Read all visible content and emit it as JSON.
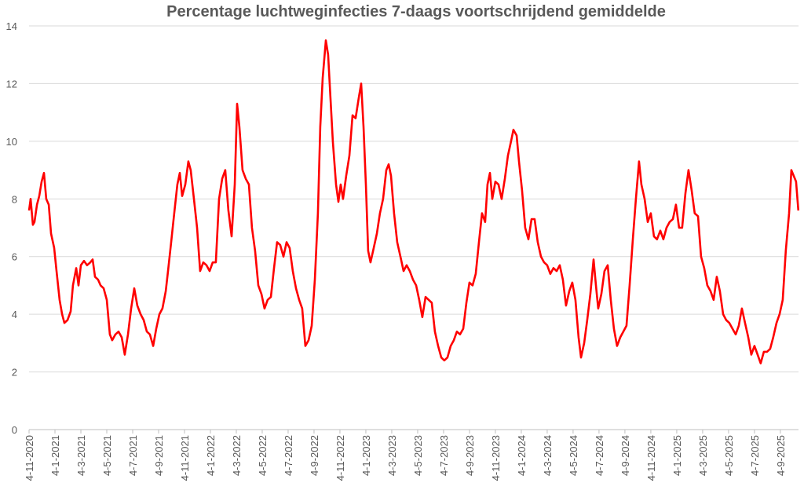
{
  "chart_data": {
    "type": "line",
    "title": "Percentage luchtweginfecties 7-daags voortschrijdend gemiddelde",
    "xlabel": "",
    "ylabel": "",
    "x_units": "months since 4-11-2020",
    "xlim": [
      0,
      59.4
    ],
    "ylim": [
      0,
      14
    ],
    "y_ticks": [
      0,
      2,
      4,
      6,
      8,
      10,
      12,
      14
    ],
    "x_ticks": [
      0,
      2,
      4,
      6,
      8,
      10,
      12,
      14,
      16,
      18,
      20,
      22,
      24,
      26,
      28,
      30,
      32,
      34,
      36,
      38,
      40,
      42,
      44,
      46,
      48,
      50,
      52,
      54,
      56,
      58
    ],
    "x_tick_labels": [
      "4-11-2020",
      "4-1-2021",
      "4-3-2021",
      "4-5-2021",
      "4-7-2021",
      "4-9-2021",
      "4-11-2021",
      "4-1-2022",
      "4-3-2022",
      "4-5-2022",
      "4-7-2022",
      "4-9-2022",
      "4-11-2022",
      "4-1-2023",
      "4-3-2023",
      "4-5-2023",
      "4-7-2023",
      "4-9-2023",
      "4-11-2023",
      "4-1-2024",
      "4-3-2024",
      "4-5-2024",
      "4-7-2024",
      "4-9-2024",
      "4-11-2024",
      "4-1-2025",
      "4-3-2025",
      "4-5-2025",
      "4-7-2025",
      "4-9-2025"
    ],
    "grid": true,
    "legend": "none",
    "series": [
      {
        "name": "Percentage luchtweginfecties",
        "color": "#ff0000",
        "x": [
          0,
          0.12,
          0.3,
          0.42,
          0.61,
          0.79,
          0.97,
          1.15,
          1.33,
          1.52,
          1.7,
          1.94,
          2.12,
          2.36,
          2.55,
          2.73,
          2.97,
          3.21,
          3.39,
          3.64,
          3.82,
          4,
          4.24,
          4.48,
          4.73,
          4.91,
          5.09,
          5.33,
          5.52,
          5.76,
          6,
          6.24,
          6.42,
          6.67,
          6.91,
          7.15,
          7.39,
          7.64,
          7.88,
          8.12,
          8.36,
          8.61,
          8.85,
          9.09,
          9.33,
          9.58,
          9.82,
          10.06,
          10.3,
          10.55,
          10.73,
          10.97,
          11.21,
          11.45,
          11.64,
          11.82,
          12.06,
          12.3,
          12.48,
          12.73,
          12.97,
          13.21,
          13.45,
          13.7,
          13.94,
          14.18,
          14.42,
          14.67,
          14.91,
          15.15,
          15.39,
          15.64,
          15.88,
          16.06,
          16.24,
          16.48,
          16.73,
          16.97,
          17.21,
          17.45,
          17.7,
          17.94,
          18.18,
          18.42,
          18.67,
          18.91,
          19.15,
          19.39,
          19.64,
          19.88,
          20.12,
          20.36,
          20.61,
          20.85,
          21.09,
          21.33,
          21.58,
          21.82,
          22.06,
          22.3,
          22.48,
          22.67,
          22.91,
          23.09,
          23.27,
          23.45,
          23.7,
          23.88,
          24.06,
          24.24,
          24.48,
          24.73,
          24.97,
          25.21,
          25.45,
          25.64,
          25.82,
          26,
          26.18,
          26.36,
          26.61,
          26.85,
          27.09,
          27.33,
          27.58,
          27.76,
          27.94,
          28.18,
          28.42,
          28.67,
          28.91,
          29.15,
          29.39,
          29.64,
          29.88,
          30.12,
          30.36,
          30.61,
          30.85,
          31.09,
          31.33,
          31.58,
          31.82,
          32.06,
          32.3,
          32.55,
          32.79,
          33.03,
          33.27,
          33.52,
          33.76,
          34,
          34.24,
          34.48,
          34.73,
          34.97,
          35.21,
          35.39,
          35.58,
          35.76,
          36,
          36.24,
          36.48,
          36.73,
          36.97,
          37.21,
          37.39,
          37.64,
          37.82,
          38.06,
          38.3,
          38.55,
          38.79,
          39.03,
          39.27,
          39.52,
          39.76,
          40,
          40.24,
          40.48,
          40.73,
          40.97,
          41.21,
          41.45,
          41.7,
          41.94,
          42.18,
          42.42,
          42.61,
          42.85,
          43.09,
          43.33,
          43.58,
          43.76,
          43.94,
          44.18,
          44.42,
          44.67,
          44.91,
          45.15,
          45.39,
          45.64,
          45.88,
          46.12,
          46.36,
          46.61,
          46.85,
          47.09,
          47.27,
          47.52,
          47.76,
          48,
          48.24,
          48.48,
          48.73,
          48.97,
          49.21,
          49.45,
          49.7,
          49.94,
          50.18,
          50.42,
          50.67,
          50.91,
          51.15,
          51.39,
          51.64,
          51.88,
          52.12,
          52.36,
          52.61,
          52.85,
          53.09,
          53.33,
          53.58,
          53.82,
          54.06,
          54.3,
          54.55,
          54.79,
          55.03,
          55.27,
          55.52,
          55.76,
          56,
          56.24,
          56.48,
          56.73,
          56.97,
          57.21,
          57.45,
          57.7,
          57.94,
          58.18,
          58.42,
          58.67,
          58.85,
          59.03,
          59.21,
          59.39
        ],
        "y": [
          7.6,
          8.0,
          7.1,
          7.2,
          7.8,
          8.1,
          8.6,
          8.9,
          8.0,
          7.8,
          6.8,
          6.3,
          5.5,
          4.5,
          4.0,
          3.7,
          3.8,
          4.1,
          5.0,
          5.6,
          5.0,
          5.7,
          5.85,
          5.7,
          5.8,
          5.9,
          5.3,
          5.2,
          5.0,
          4.9,
          4.5,
          3.3,
          3.1,
          3.3,
          3.4,
          3.2,
          2.6,
          3.3,
          4.2,
          4.9,
          4.3,
          4.0,
          3.8,
          3.4,
          3.3,
          2.9,
          3.5,
          4.0,
          4.2,
          4.8,
          5.5,
          6.5,
          7.5,
          8.5,
          8.9,
          8.1,
          8.5,
          9.3,
          9.0,
          8.0,
          7.0,
          5.5,
          5.8,
          5.7,
          5.5,
          5.8,
          5.8,
          8.0,
          8.7,
          9.0,
          7.6,
          6.7,
          8.5,
          11.3,
          10.5,
          9.0,
          8.7,
          8.5,
          7.0,
          6.2,
          5.0,
          4.7,
          4.2,
          4.5,
          4.6,
          5.6,
          6.5,
          6.4,
          6.0,
          6.5,
          6.3,
          5.5,
          4.9,
          4.5,
          4.2,
          2.9,
          3.1,
          3.6,
          5.2,
          7.5,
          10.5,
          12.2,
          13.5,
          13.0,
          11.5,
          10.0,
          8.5,
          7.9,
          8.5,
          8.0,
          8.8,
          9.5,
          10.9,
          10.8,
          11.5,
          12.0,
          10.5,
          8.5,
          6.2,
          5.8,
          6.3,
          6.8,
          7.5,
          8.0,
          9.0,
          9.2,
          8.8,
          7.5,
          6.5,
          6.0,
          5.5,
          5.7,
          5.5,
          5.2,
          5.0,
          4.5,
          3.9,
          4.6,
          4.5,
          4.4,
          3.4,
          2.9,
          2.5,
          2.4,
          2.5,
          2.9,
          3.1,
          3.4,
          3.3,
          3.5,
          4.4,
          5.1,
          5.0,
          5.4,
          6.5,
          7.5,
          7.2,
          8.5,
          8.9,
          8.0,
          8.6,
          8.5,
          8.0,
          8.7,
          9.5,
          10.0,
          10.4,
          10.2,
          9.3,
          8.3,
          7.0,
          6.6,
          7.3,
          7.3,
          6.5,
          6.0,
          5.8,
          5.7,
          5.4,
          5.6,
          5.5,
          5.7,
          5.2,
          4.3,
          4.8,
          5.1,
          4.5,
          3.2,
          2.5,
          3.0,
          3.8,
          4.7,
          5.9,
          5.0,
          4.2,
          4.7,
          5.5,
          5.7,
          4.5,
          3.5,
          2.9,
          3.2,
          3.4,
          3.6,
          5.0,
          6.6,
          8.0,
          9.3,
          8.5,
          8.0,
          7.2,
          7.5,
          6.7,
          6.6,
          6.9,
          6.6,
          7.0,
          7.2,
          7.3,
          7.8,
          7.0,
          7.0,
          8.2,
          9.0,
          8.3,
          7.5,
          7.4,
          6.0,
          5.6,
          5.0,
          4.8,
          4.5,
          5.3,
          4.8,
          4.0,
          3.8,
          3.7,
          3.5,
          3.3,
          3.6,
          4.2,
          3.7,
          3.2,
          2.6,
          2.9,
          2.6,
          2.3,
          2.7,
          2.7,
          2.8,
          3.2,
          3.7,
          4.0,
          4.5,
          6.2,
          7.5,
          9.0,
          8.8,
          8.6,
          7.6
        ]
      }
    ],
    "colors": {
      "line": "#ff0000",
      "grid": "#d9d9d9",
      "text": "#595959"
    }
  }
}
